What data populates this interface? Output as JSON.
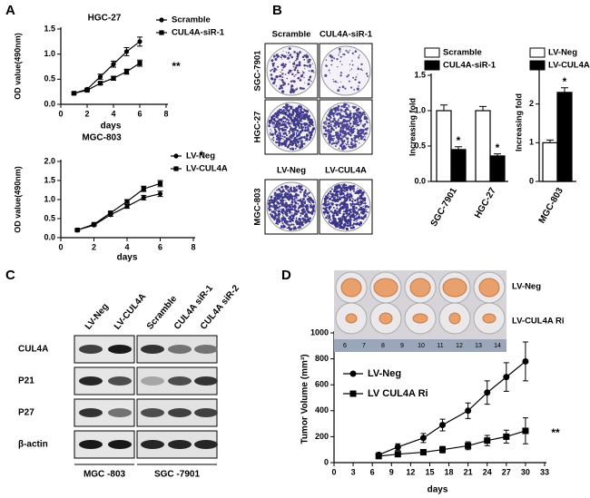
{
  "figure": {
    "panel_labels": [
      "A",
      "B",
      "C",
      "D"
    ],
    "colony": {
      "columns_top": [
        "Scramble",
        "CUL4A-siR-1"
      ],
      "columns_bottom": [
        "LV-Neg",
        "LV-CUL4A"
      ],
      "rows": [
        "SGC-7901",
        "HGC-27",
        "MGC-803"
      ]
    },
    "western_blot": {
      "lanes": [
        "LV-Neg",
        "LV-CUL4A",
        "Scramble",
        "CUL4A siR-1",
        "CUL4A siR-2"
      ],
      "proteins": [
        "CUL4A",
        "P21",
        "P27",
        "β-actin"
      ],
      "groups": [
        "MGC -803",
        "SGC -7901"
      ]
    },
    "tumor_photo": {
      "rows": [
        "LV-Neg",
        "LV-CUL4A Ri"
      ],
      "ruler": [
        6,
        7,
        8,
        9,
        10,
        11,
        12,
        13,
        14
      ]
    }
  },
  "chart_data": [
    {
      "type": "line",
      "title": "HGC-27",
      "x_label": "days",
      "y_label": "OD value(490nm)",
      "x": [
        1,
        2,
        3,
        4,
        5,
        6
      ],
      "series": [
        {
          "name": "Scramble",
          "color": "#000000",
          "marker": "circle",
          "values": [
            0.22,
            0.3,
            0.55,
            0.8,
            1.05,
            1.25
          ],
          "errors": [
            0.02,
            0.02,
            0.05,
            0.06,
            0.08,
            0.09
          ]
        },
        {
          "name": "CUL4A-siR-1",
          "color": "#000000",
          "marker": "square",
          "values": [
            0.22,
            0.28,
            0.42,
            0.52,
            0.65,
            0.82
          ],
          "errors": [
            0.02,
            0.02,
            0.03,
            0.04,
            0.05,
            0.06
          ]
        }
      ],
      "xlim": [
        0,
        8
      ],
      "xticks": [
        0,
        2,
        4,
        6,
        8
      ],
      "ylim": [
        0,
        1.5
      ],
      "yticks": [
        {
          "value": 0,
          "label": "0.0"
        },
        {
          "value": 0.5,
          "label": "0.5"
        },
        {
          "value": 1,
          "label": "1.0"
        },
        {
          "value": 1.5,
          "label": "1.5"
        }
      ],
      "annotations": [
        "**"
      ]
    },
    {
      "type": "line",
      "title": "MGC-803",
      "x_label": "days",
      "y_label": "OD value(490nm)",
      "x": [
        1,
        2,
        3,
        4,
        5,
        6
      ],
      "series": [
        {
          "name": "LV-Neg",
          "color": "#000000",
          "marker": "circle",
          "values": [
            0.2,
            0.33,
            0.6,
            0.82,
            1.05,
            1.15
          ],
          "errors": [
            0.02,
            0.02,
            0.04,
            0.05,
            0.06,
            0.07
          ]
        },
        {
          "name": "LV-CUL4A",
          "color": "#000000",
          "marker": "square",
          "values": [
            0.2,
            0.35,
            0.65,
            0.95,
            1.28,
            1.42
          ],
          "errors": [
            0.02,
            0.02,
            0.04,
            0.05,
            0.07,
            0.08
          ]
        }
      ],
      "xlim": [
        0,
        8
      ],
      "xticks": [
        0,
        2,
        4,
        6,
        8
      ],
      "ylim": [
        0,
        2
      ],
      "yticks": [
        {
          "value": 0,
          "label": "0.0"
        },
        {
          "value": 0.5,
          "label": "0.5"
        },
        {
          "value": 1,
          "label": "1.0"
        },
        {
          "value": 1.5,
          "label": "1.5"
        },
        {
          "value": 2,
          "label": "2.0"
        }
      ],
      "annotations": [
        "*"
      ]
    },
    {
      "type": "bar",
      "y_label": "Increasing fold",
      "categories": [
        "SGC-7901",
        "HGC-27"
      ],
      "series": [
        {
          "name": "Scramble",
          "color": "#ffffff",
          "values": [
            1.0,
            1.0
          ],
          "errors": [
            0.08,
            0.06
          ]
        },
        {
          "name": "CUL4A-siR-1",
          "color": "#000000",
          "values": [
            0.45,
            0.36
          ],
          "errors": [
            0.04,
            0.03
          ]
        }
      ],
      "ylim": [
        0,
        1.5
      ],
      "yticks": [
        {
          "value": 0,
          "label": "0.0"
        },
        {
          "value": 0.5,
          "label": "0.5"
        },
        {
          "value": 1,
          "label": "1.0"
        },
        {
          "value": 1.5,
          "label": "1.5"
        }
      ],
      "annotations": [
        "*",
        "*"
      ]
    },
    {
      "type": "bar",
      "y_label": "Increasing fold",
      "categories": [
        "MGC-803"
      ],
      "series": [
        {
          "name": "LV-Neg",
          "color": "#ffffff",
          "values": [
            1.0
          ],
          "errors": [
            0.07
          ]
        },
        {
          "name": "LV-CUL4A",
          "color": "#000000",
          "values": [
            2.3
          ],
          "errors": [
            0.12
          ]
        }
      ],
      "ylim": [
        0,
        3
      ],
      "yticks": [
        0,
        1,
        2,
        3
      ],
      "annotations": [
        "*"
      ]
    },
    {
      "type": "line",
      "x_label": "days",
      "y_label": "Tumor Volume (mm³)",
      "x": [
        7,
        10,
        14,
        17,
        21,
        24,
        27,
        30
      ],
      "series": [
        {
          "name": "LV-Neg",
          "color": "#000000",
          "marker": "circle",
          "values": [
            60,
            120,
            190,
            290,
            400,
            540,
            660,
            780
          ],
          "errors": [
            15,
            25,
            35,
            45,
            60,
            90,
            110,
            150
          ]
        },
        {
          "name": "LV CUL4A Ri",
          "color": "#000000",
          "marker": "square",
          "values": [
            50,
            65,
            80,
            100,
            130,
            170,
            200,
            245
          ],
          "errors": [
            10,
            15,
            20,
            25,
            30,
            40,
            50,
            100
          ]
        }
      ],
      "xlim": [
        0,
        33
      ],
      "xticks": [
        0,
        3,
        6,
        9,
        12,
        15,
        18,
        21,
        24,
        27,
        30,
        33
      ],
      "ylim": [
        0,
        1000
      ],
      "yticks": [
        0,
        200,
        400,
        600,
        800,
        1000
      ],
      "annotations": [
        "**"
      ]
    }
  ]
}
